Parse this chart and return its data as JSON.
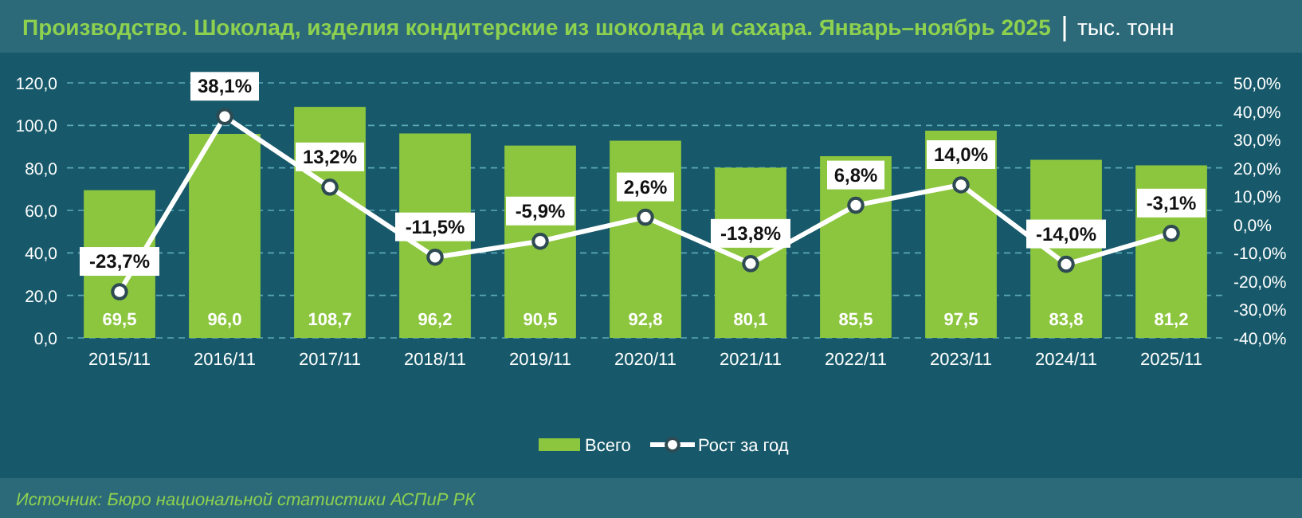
{
  "chart_data": {
    "type": "bar",
    "title": "Производство. Шоколад, изделия кондитерские из шоколада и сахара. Январь–ноябрь 2025",
    "subtitle": "тыс. тонн",
    "categories": [
      "2015/11",
      "2016/11",
      "2017/11",
      "2018/11",
      "2019/11",
      "2020/11",
      "2021/11",
      "2022/11",
      "2023/11",
      "2024/11",
      "2025/11"
    ],
    "series": [
      {
        "name": "Всего",
        "color": "#8cc63f",
        "values": [
          69.5,
          96.0,
          108.7,
          96.2,
          90.5,
          92.8,
          80.1,
          85.5,
          97.5,
          83.8,
          81.2
        ],
        "value_labels": [
          "69,5",
          "96,0",
          "108,7",
          "96,2",
          "90,5",
          "92,8",
          "80,1",
          "85,5",
          "97,5",
          "83,8",
          "81,2"
        ]
      },
      {
        "name": "Рост за год",
        "type": "line",
        "axis": "y2",
        "color": "#ffffff",
        "values": [
          -23.7,
          38.1,
          13.2,
          -11.5,
          -5.9,
          2.6,
          -13.8,
          6.8,
          14.0,
          -14.0,
          -3.1
        ],
        "value_labels": [
          "-23,7%",
          "38,1%",
          "13,2%",
          "-11,5%",
          "-5,9%",
          "2,6%",
          "-13,8%",
          "6,8%",
          "14,0%",
          "-14,0%",
          "-3,1%"
        ]
      }
    ],
    "ylim": [
      0,
      120
    ],
    "yticks": [
      {
        "value": 0,
        "label": "0,0"
      },
      {
        "value": 20,
        "label": "20,0"
      },
      {
        "value": 40,
        "label": "40,0"
      },
      {
        "value": 60,
        "label": "60,0"
      },
      {
        "value": 80,
        "label": "80,0"
      },
      {
        "value": 100,
        "label": "100,0"
      },
      {
        "value": 120,
        "label": "120,0"
      }
    ],
    "y2lim": [
      -40,
      50
    ],
    "y2ticks": [
      {
        "value": -40,
        "label": "-40,0%"
      },
      {
        "value": -30,
        "label": "-30,0%"
      },
      {
        "value": -20,
        "label": "-20,0%"
      },
      {
        "value": -10,
        "label": "-10,0%"
      },
      {
        "value": 0,
        "label": "0,0%"
      },
      {
        "value": 10,
        "label": "10,0%"
      },
      {
        "value": 20,
        "label": "20,0%"
      },
      {
        "value": 30,
        "label": "30,0%"
      },
      {
        "value": 40,
        "label": "40,0%"
      },
      {
        "value": 50,
        "label": "50,0%"
      }
    ],
    "grid": "y",
    "legend": "bottom",
    "marker": "circle",
    "line_style": "solid",
    "annotations": [
      "Источник: Бюро национальной статистики АСПиР РК"
    ]
  }
}
